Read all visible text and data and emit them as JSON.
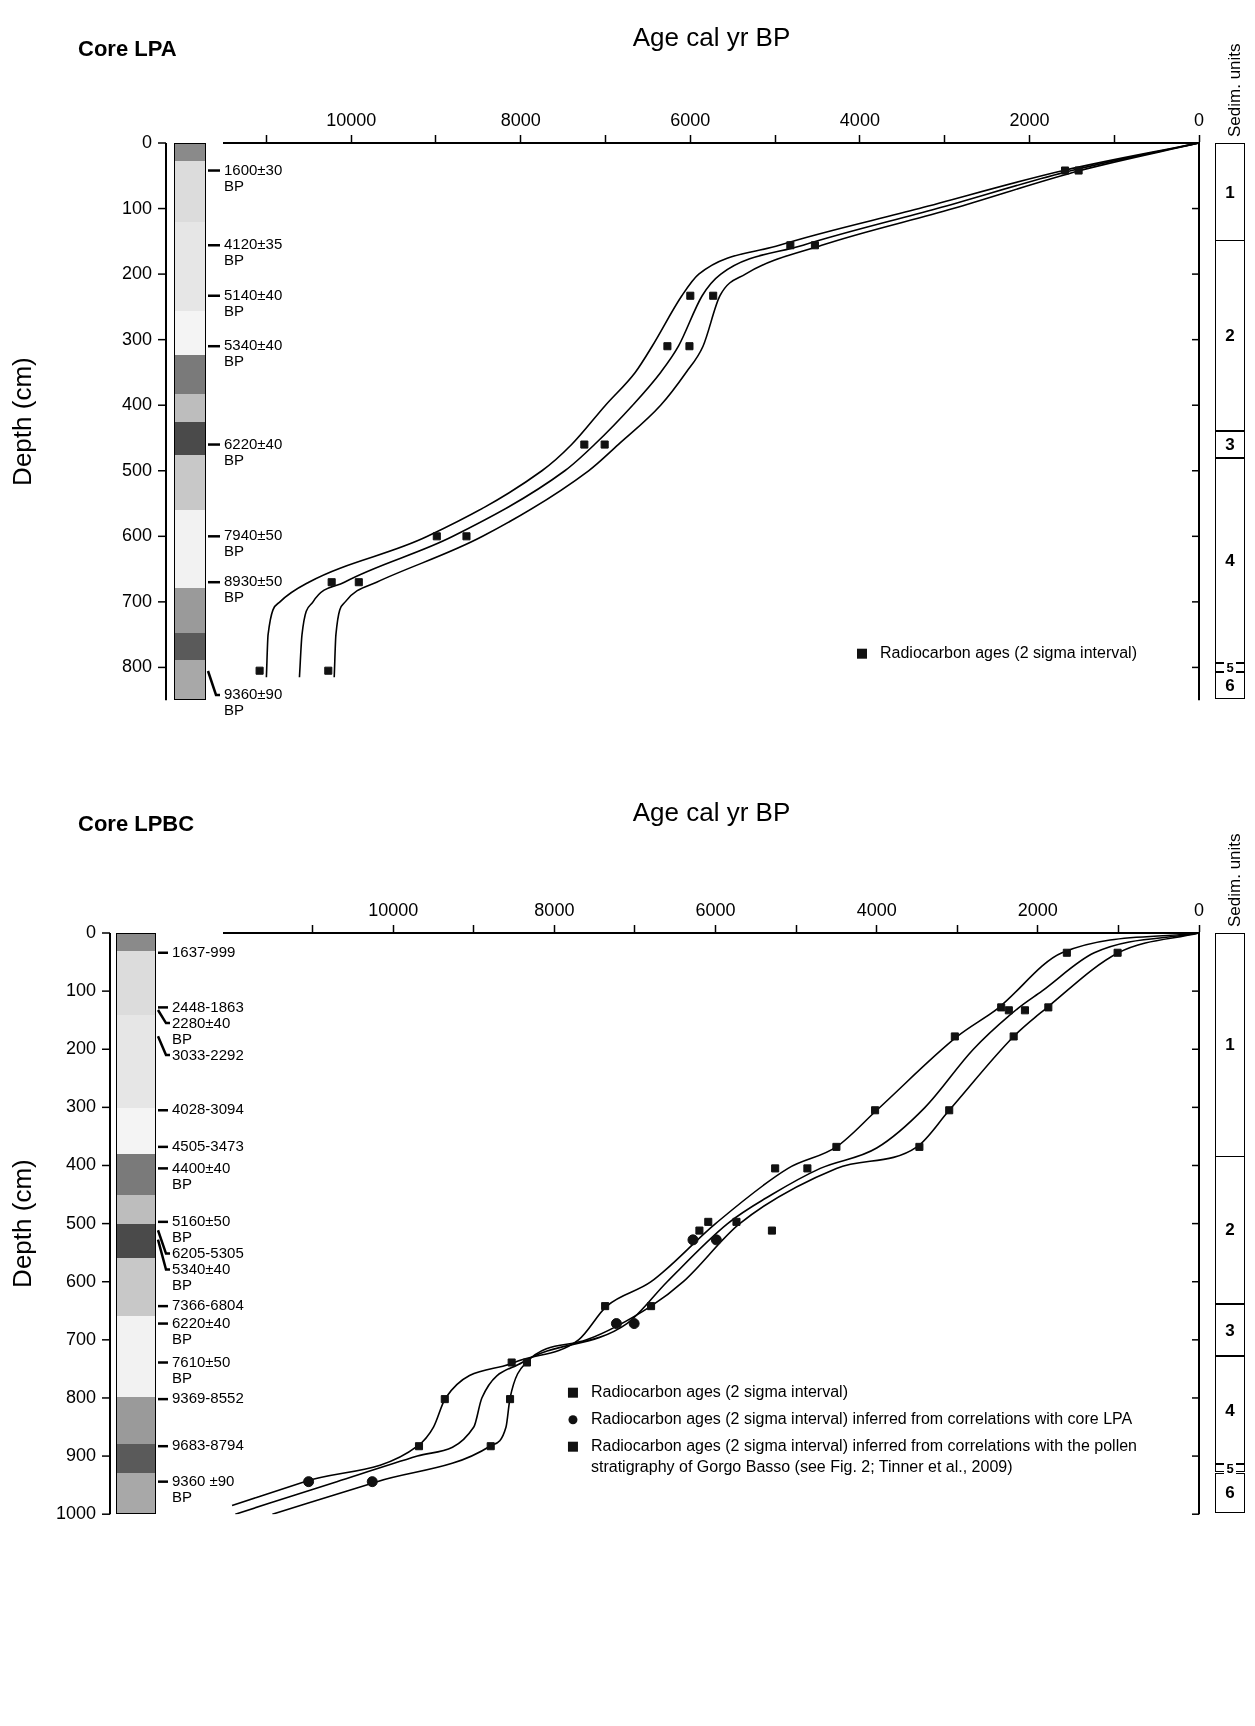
{
  "chart_data": [
    {
      "type": "line",
      "title": "Core LPA",
      "xlabel": "Age cal yr BP",
      "ylabel": "Depth (cm)",
      "xlim": [
        11500,
        0
      ],
      "xticks": [
        {
          "value": 11000,
          "label": null
        },
        10000,
        {
          "value": 9000,
          "label": null
        },
        8000,
        {
          "value": 7000,
          "label": null
        },
        6000,
        {
          "value": 5000,
          "label": null
        },
        4000,
        {
          "value": 3000,
          "label": null
        },
        2000,
        {
          "value": 1000,
          "label": null
        },
        0
      ],
      "ylim": [
        850,
        0
      ],
      "yticks": [
        0,
        100,
        200,
        300,
        400,
        500,
        600,
        700,
        800
      ],
      "legend": "bottom right",
      "series": [
        {
          "type": "line",
          "color": "#000000",
          "marker": "none",
          "x": [
            0,
            1600,
            3300,
            4950,
            5900,
            6100,
            6450,
            6650,
            7000,
            7400,
            7750,
            9100,
            10500,
            10840,
            10980,
            11000
          ],
          "values": [
            0,
            42,
            100,
            156,
            200,
            233,
            310,
            350,
            400,
            460,
            500,
            600,
            670,
            700,
            750,
            815
          ]
        },
        {
          "type": "line",
          "color": "#000000",
          "marker": "none",
          "x": [
            0,
            1500,
            3090,
            4670,
            5640,
            5860,
            6140,
            6350,
            6680,
            7130,
            7480,
            8800,
            10080,
            10450,
            10580,
            10610
          ],
          "values": [
            0,
            42,
            100,
            156,
            200,
            233,
            310,
            350,
            400,
            460,
            500,
            600,
            670,
            700,
            750,
            815
          ]
        },
        {
          "type": "line",
          "color": "#000000",
          "marker": "none",
          "x": [
            0,
            1400,
            2900,
            4450,
            5350,
            5650,
            5850,
            6050,
            6350,
            6850,
            7200,
            8450,
            9700,
            10070,
            10180,
            10200
          ],
          "values": [
            0,
            42,
            100,
            156,
            200,
            233,
            310,
            350,
            400,
            460,
            500,
            600,
            670,
            700,
            750,
            815
          ]
        },
        {
          "type": "scatter",
          "name": "Radiocarbon ages (2 sigma interval)",
          "color": "#111111",
          "marker": "square",
          "x": [
            1580,
            1420,
            4820,
            4530,
            6000,
            5730,
            6270,
            6010,
            7250,
            7010,
            8990,
            8640,
            10230,
            9910,
            11080,
            10270
          ],
          "values": [
            42,
            42,
            156,
            156,
            233,
            233,
            310,
            310,
            460,
            460,
            600,
            600,
            670,
            670,
            805,
            805
          ]
        }
      ],
      "annotations": [
        "Sedim. units",
        "1",
        "2",
        "3",
        "4",
        "5",
        "6",
        "1600±30 BP",
        "4120±35 BP",
        "5140±40 BP",
        "5340±40 BP",
        "6220±40 BP",
        "7940±50 BP",
        "8930±50 BP",
        "9360±90 BP"
      ]
    },
    {
      "type": "line",
      "title": "Core LPBC",
      "xlabel": "Age cal yr BP",
      "ylabel": "Depth (cm)",
      "xlim": [
        12100,
        0
      ],
      "xticks": [
        {
          "value": 11000,
          "label": null
        },
        10000,
        {
          "value": 9000,
          "label": null
        },
        8000,
        {
          "value": 7000,
          "label": null
        },
        6000,
        {
          "value": 5000,
          "label": null
        },
        4000,
        {
          "value": 3000,
          "label": null
        },
        2000,
        {
          "value": 1000,
          "label": null
        },
        0
      ],
      "ylim": [
        1000,
        0
      ],
      "yticks": [
        0,
        100,
        200,
        300,
        400,
        500,
        600,
        700,
        800,
        900,
        1000
      ],
      "legend": "bottom right",
      "series": [
        {
          "type": "line",
          "color": "#000000",
          "marker": "none",
          "x": [
            0,
            1700,
            2500,
            3000,
            4000,
            4500,
            5100,
            6000,
            6800,
            7350,
            7700,
            8500,
            9350,
            9500,
            9700,
            11100,
            12000
          ],
          "values": [
            0,
            34,
            130,
            178,
            305,
            368,
            405,
            500,
            600,
            642,
            700,
            739,
            800,
            850,
            883,
            944,
            985
          ]
        },
        {
          "type": "line",
          "color": "#000000",
          "marker": "none",
          "x": [
            0,
            1300,
            1950,
            2250,
            2800,
            3400,
            4000,
            4700,
            5300,
            5850,
            6600,
            7100,
            8400,
            8900,
            9000,
            9700,
            10700,
            11960
          ],
          "values": [
            0,
            34,
            100,
            130,
            200,
            300,
            370,
            405,
            450,
            500,
            600,
            672,
            739,
            800,
            850,
            900,
            944,
            1000
          ]
        },
        {
          "type": "line",
          "color": "#000000",
          "marker": "none",
          "x": [
            0,
            1000,
            1900,
            2300,
            3100,
            3500,
            4500,
            5700,
            6400,
            6800,
            7600,
            8350,
            8550,
            8600,
            8800,
            10200,
            11500
          ],
          "values": [
            0,
            34,
            130,
            178,
            305,
            368,
            405,
            500,
            600,
            642,
            700,
            739,
            800,
            850,
            883,
            944,
            1000
          ]
        },
        {
          "type": "scatter",
          "name": "Radiocarbon ages (2 sigma interval)",
          "color": "#111111",
          "marker": "square",
          "x": [
            2360,
            2160,
            5260,
            4860,
            6090,
            5740,
            8530,
            8340
          ],
          "values": [
            133,
            133,
            405,
            405,
            497,
            497,
            739,
            739
          ]
        },
        {
          "type": "scatter",
          "name": "Radiocarbon ages (2 sigma interval) inferred from correlations with core LPA",
          "color": "#111111",
          "marker": "circle",
          "x": [
            6280,
            5990,
            7230,
            7010,
            11050,
            10260
          ],
          "values": [
            528,
            528,
            672,
            672,
            944,
            944
          ]
        },
        {
          "type": "scatter",
          "name": "Radiocarbon ages (2 sigma interval) inferred from correlations with the pollen stratigraphy of Gorgo Basso (see Fig. 2; Tinner et al., 2009)",
          "color": "#111111",
          "marker": "square",
          "x": [
            1640,
            1010,
            2455,
            1870,
            3030,
            2300,
            4020,
            3100,
            4500,
            3470,
            6200,
            5300,
            7370,
            6800,
            9360,
            8550,
            9680,
            8790
          ],
          "values": [
            34,
            34,
            128,
            128,
            178,
            178,
            305,
            305,
            368,
            368,
            512,
            512,
            642,
            642,
            802,
            802,
            883,
            883
          ]
        }
      ],
      "annotations": [
        "Sedim. units",
        "1",
        "2",
        "3",
        "4",
        "5",
        "6",
        "1637-999",
        "2448-1863",
        "2280±40 BP",
        "3033-2292",
        "4028-3094",
        "4505-3473",
        "4400±40 BP",
        "5160±50 BP",
        "6205-5305",
        "5340±40 BP",
        "7366-6804",
        "6220±40 BP",
        "7610±50 BP",
        "9369-8552",
        "9683-8794",
        "9360 ±90 BP"
      ]
    }
  ]
}
